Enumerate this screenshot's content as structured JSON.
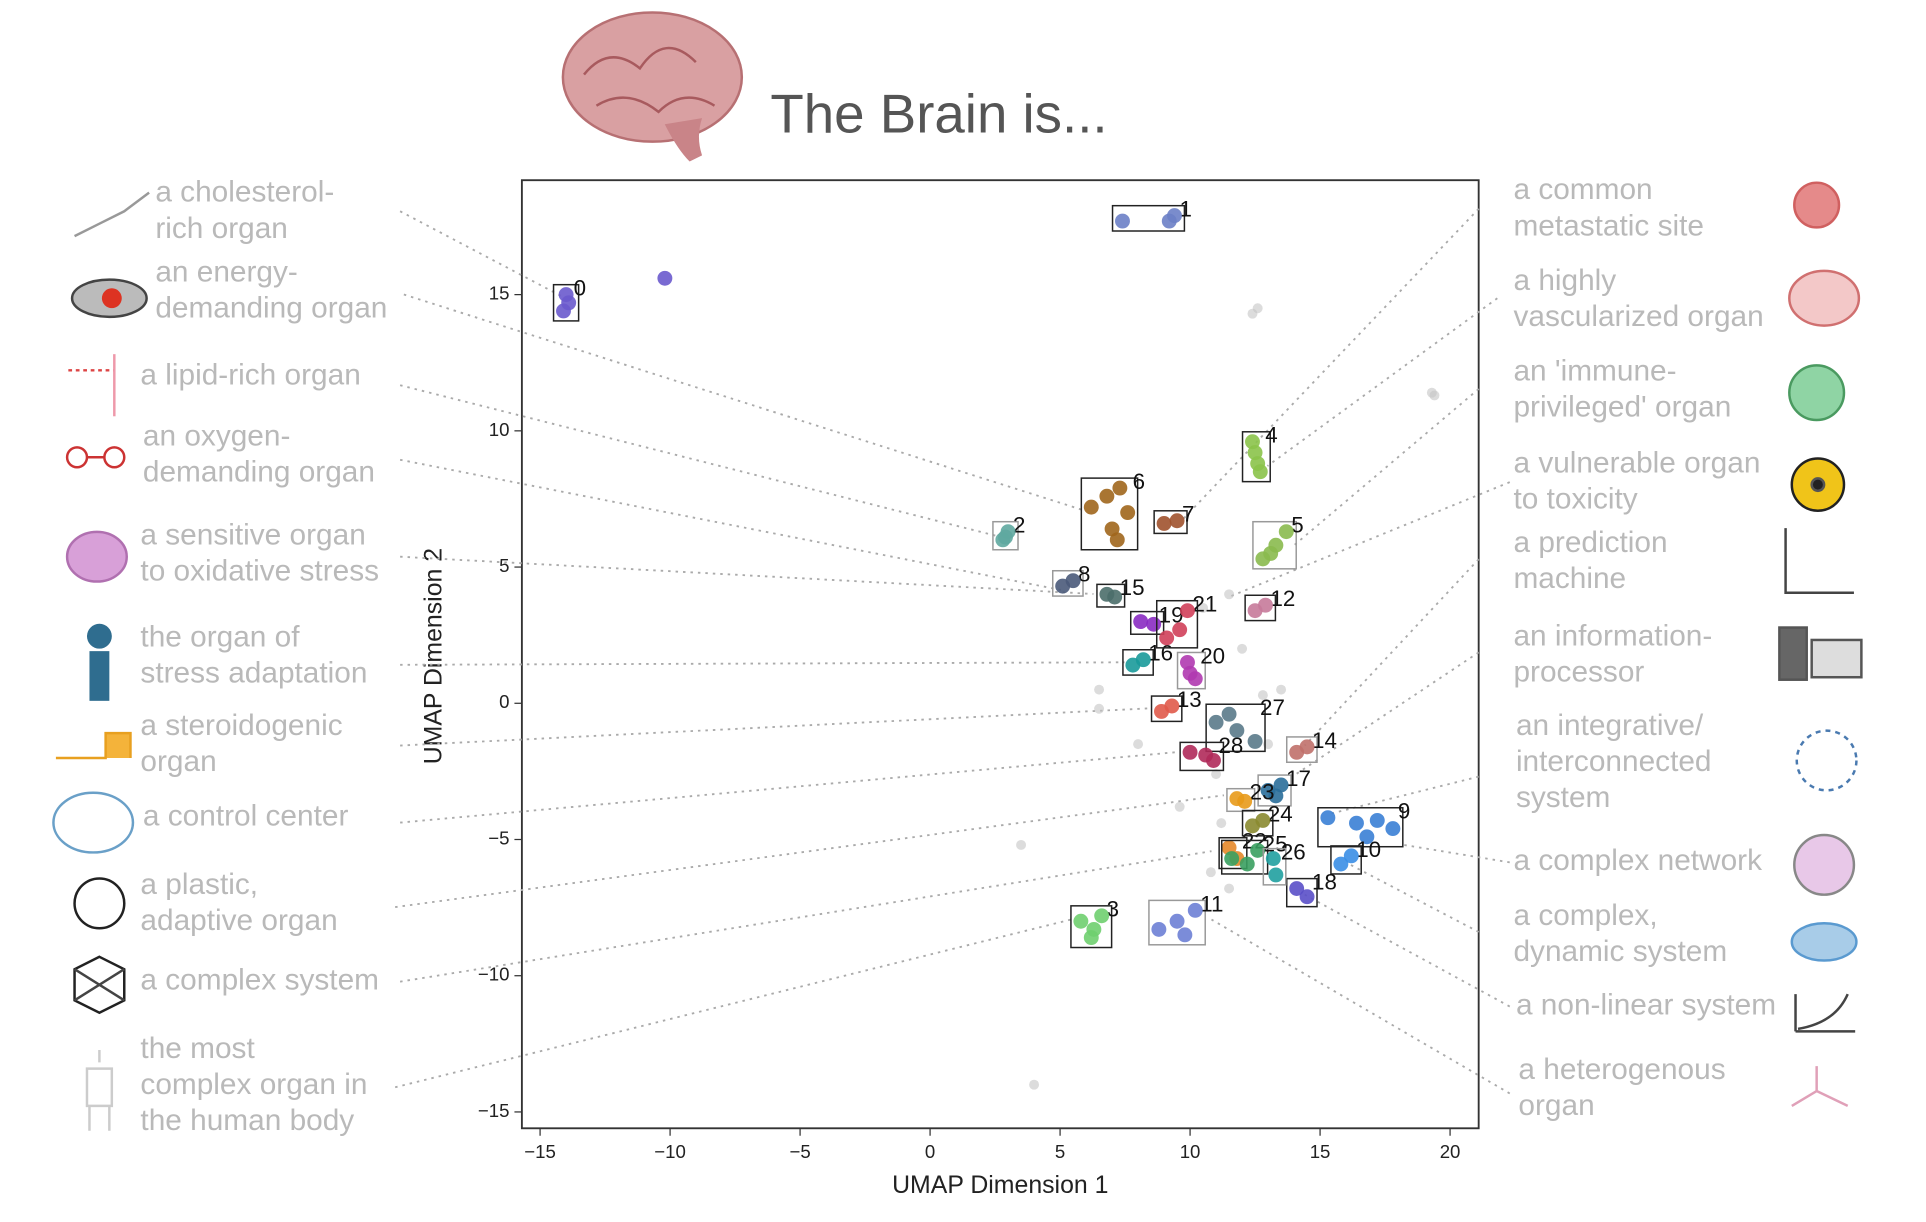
{
  "chart_data": {
    "type": "scatter",
    "title": "The Brain is...",
    "xlabel": "UMAP Dimension 1",
    "ylabel": "UMAP Dimension 2",
    "xlim": [
      -15.7,
      21.1
    ],
    "ylim": [
      -15.6,
      19.2
    ],
    "xticks": [
      {
        "value": -15,
        "label": "−15"
      },
      {
        "value": -10,
        "label": "−10"
      },
      {
        "value": -5,
        "label": "−5"
      },
      0,
      5,
      10,
      15,
      20
    ],
    "yticks": [
      {
        "value": -15,
        "label": "−15"
      },
      {
        "value": -10,
        "label": "−10"
      },
      {
        "value": -5,
        "label": "−5"
      },
      0,
      5,
      10,
      15
    ],
    "series": [
      {
        "color": "#c4c4c4",
        "x": [
          12.4,
          12.6,
          19.3,
          19.4,
          3.5,
          4.0,
          6.5,
          11.0,
          8.0,
          10.5,
          11.5,
          12.0,
          13.5,
          12.8,
          10.8,
          6.5,
          11.2,
          9.6,
          13.0,
          11.5
        ],
        "y": [
          14.3,
          14.5,
          11.4,
          11.3,
          -5.2,
          -14.0,
          -0.2,
          -2.6,
          -1.5,
          3.5,
          4.0,
          2.0,
          0.5,
          0.3,
          -6.2,
          0.5,
          -4.4,
          -3.8,
          -1.5,
          -6.8
        ]
      },
      {
        "name": "0",
        "color": "#6a5acd",
        "x": [
          -14.0,
          -14.1,
          -13.9,
          -10.2
        ],
        "y": [
          15.0,
          14.4,
          14.7,
          15.6
        ]
      },
      {
        "name": "1",
        "color": "#6b7fc7",
        "x": [
          7.4,
          9.2,
          9.4
        ],
        "y": [
          17.7,
          17.7,
          17.9
        ]
      },
      {
        "name": "2",
        "color": "#5fa9a0",
        "x": [
          2.8,
          3.0,
          2.9
        ],
        "y": [
          6.0,
          6.3,
          6.1
        ]
      },
      {
        "name": "3",
        "color": "#6fcf6f",
        "x": [
          5.8,
          6.3,
          6.6,
          6.2
        ],
        "y": [
          -8.0,
          -8.3,
          -7.8,
          -8.6
        ]
      },
      {
        "name": "4",
        "color": "#8bc34a",
        "x": [
          12.4,
          12.6,
          12.7,
          12.5
        ],
        "y": [
          9.6,
          8.8,
          8.5,
          9.2
        ]
      },
      {
        "name": "5",
        "color": "#8aba4e",
        "x": [
          12.8,
          13.3,
          13.7,
          13.1
        ],
        "y": [
          5.3,
          5.8,
          6.3,
          5.5
        ]
      },
      {
        "name": "6",
        "color": "#a0661c",
        "x": [
          6.2,
          6.8,
          7.0,
          7.3,
          7.6,
          7.2
        ],
        "y": [
          7.2,
          7.6,
          6.4,
          7.9,
          7.0,
          6.0
        ]
      },
      {
        "name": "7",
        "color": "#a0522d",
        "x": [
          9.0,
          9.5
        ],
        "y": [
          6.6,
          6.7
        ]
      },
      {
        "name": "8",
        "color": "#4a5a7a",
        "x": [
          5.1,
          5.5
        ],
        "y": [
          4.3,
          4.5
        ]
      },
      {
        "name": "9",
        "color": "#3a7fd5",
        "x": [
          15.3,
          16.4,
          17.2,
          17.8,
          16.8
        ],
        "y": [
          -4.2,
          -4.4,
          -4.3,
          -4.6,
          -4.9
        ]
      },
      {
        "name": "10",
        "color": "#3a8ee6",
        "x": [
          15.8,
          16.2
        ],
        "y": [
          -5.9,
          -5.6
        ]
      },
      {
        "name": "11",
        "color": "#6d7fd5",
        "x": [
          8.8,
          9.5,
          10.2,
          9.8
        ],
        "y": [
          -8.3,
          -8.0,
          -7.6,
          -8.5
        ]
      },
      {
        "name": "12",
        "color": "#c77a9a",
        "x": [
          12.5,
          12.9
        ],
        "y": [
          3.4,
          3.6
        ]
      },
      {
        "name": "13",
        "color": "#e05a4a",
        "x": [
          8.9,
          9.3
        ],
        "y": [
          -0.3,
          -0.1
        ]
      },
      {
        "name": "14",
        "color": "#c0706a",
        "x": [
          14.1,
          14.5
        ],
        "y": [
          -1.8,
          -1.6
        ]
      },
      {
        "name": "15",
        "color": "#4b6e6a",
        "x": [
          6.8,
          7.1
        ],
        "y": [
          4.0,
          3.9
        ]
      },
      {
        "name": "16",
        "color": "#1a9a9a",
        "x": [
          7.8,
          8.2
        ],
        "y": [
          1.4,
          1.6
        ]
      },
      {
        "name": "17",
        "color": "#2a6e9a",
        "x": [
          13.0,
          13.5,
          13.3
        ],
        "y": [
          -3.2,
          -3.0,
          -3.4
        ]
      },
      {
        "name": "18",
        "color": "#5a4fc8",
        "x": [
          14.1,
          14.5
        ],
        "y": [
          -6.8,
          -7.1
        ]
      },
      {
        "name": "19",
        "color": "#8a2bc2",
        "x": [
          8.1,
          8.6
        ],
        "y": [
          3.0,
          2.9
        ]
      },
      {
        "name": "20",
        "color": "#b03ab0",
        "x": [
          9.9,
          10.2,
          10.0
        ],
        "y": [
          1.5,
          0.9,
          1.1
        ]
      },
      {
        "name": "21",
        "color": "#d0405a",
        "x": [
          9.1,
          9.6,
          9.9
        ],
        "y": [
          2.4,
          2.7,
          3.4
        ]
      },
      {
        "name": "22",
        "color": "#e5882a",
        "x": [
          11.5,
          11.8
        ],
        "y": [
          -5.3,
          -5.7
        ]
      },
      {
        "name": "23",
        "color": "#e89a1a",
        "x": [
          11.8,
          12.1
        ],
        "y": [
          -3.5,
          -3.6
        ]
      },
      {
        "name": "24",
        "color": "#8a8a30",
        "x": [
          12.4,
          12.8
        ],
        "y": [
          -4.5,
          -4.3
        ]
      },
      {
        "name": "25",
        "color": "#3aa060",
        "x": [
          11.6,
          12.2,
          12.6
        ],
        "y": [
          -5.7,
          -5.9,
          -5.4
        ]
      },
      {
        "name": "26",
        "color": "#20a0a0",
        "x": [
          13.2,
          13.3
        ],
        "y": [
          -5.7,
          -6.3
        ]
      },
      {
        "name": "27",
        "color": "#5a7a8a",
        "x": [
          11.0,
          11.8,
          12.5,
          11.5
        ],
        "y": [
          -0.7,
          -1.0,
          -1.4,
          -0.4
        ]
      },
      {
        "name": "28",
        "color": "#b02a5a",
        "x": [
          10.0,
          10.6,
          10.9
        ],
        "y": [
          -1.8,
          -1.9,
          -2.1
        ]
      }
    ]
  },
  "left_labels": [
    [
      "a cholesterol-",
      "rich organ"
    ],
    [
      "an energy-",
      "demanding organ"
    ],
    [
      "a lipid-rich organ"
    ],
    [
      "an oxygen-",
      "demanding organ"
    ],
    [
      "a sensitive organ",
      "to oxidative stress"
    ],
    [
      "the organ of",
      "stress adaptation"
    ],
    [
      "a steroidogenic",
      "organ"
    ],
    [
      "a control center"
    ],
    [
      "a plastic,",
      "adaptive organ"
    ],
    [
      "a complex system"
    ],
    [
      "the most",
      "complex organ in",
      "the human body"
    ]
  ],
  "right_labels": [
    [
      "a common",
      "metastatic site"
    ],
    [
      "a highly",
      "vascularized organ"
    ],
    [
      "an 'immune-",
      "privileged' organ"
    ],
    [
      "a vulnerable organ",
      "to toxicity"
    ],
    [
      "a prediction",
      "machine"
    ],
    [
      "an information-",
      "processor"
    ],
    [
      "an integrative/",
      "interconnected",
      "system"
    ],
    [
      "a complex network"
    ],
    [
      "a complex,",
      "dynamic system"
    ],
    [
      "a non-linear system"
    ],
    [
      "a heterogenous",
      "organ"
    ]
  ]
}
